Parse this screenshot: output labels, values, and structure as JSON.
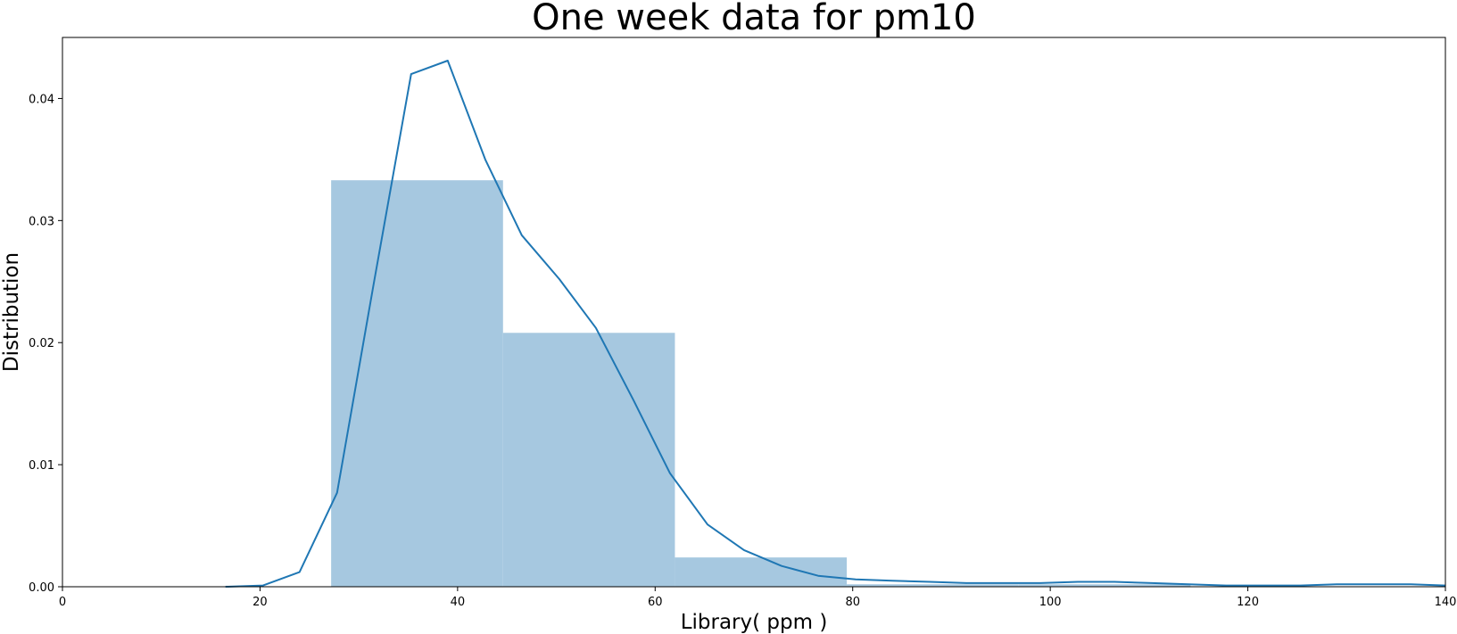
{
  "chart_data": {
    "type": "bar",
    "title": "One week data for pm10",
    "xlabel": "Library( ppm )",
    "ylabel": "Distribution",
    "xlim": [
      0,
      140
    ],
    "ylim": [
      0,
      0.045
    ],
    "xticks": [
      0,
      20,
      40,
      60,
      80,
      100,
      120,
      140
    ],
    "yticks": [
      0.0,
      0.01,
      0.02,
      0.03,
      0.04
    ],
    "xtick_labels": [
      "0",
      "20",
      "40",
      "60",
      "80",
      "100",
      "120",
      "140"
    ],
    "ytick_labels": [
      "0.00",
      "0.01",
      "0.02",
      "0.03",
      "0.04"
    ],
    "grid": false,
    "legend": "none",
    "colors": {
      "hist": "#a6c8e0",
      "kde": "#1f77b4"
    },
    "histogram": {
      "bin_edges": [
        27.2,
        44.6,
        62.0,
        79.4,
        96.8,
        114.2
      ],
      "values": [
        0.0333,
        0.0208,
        0.0024,
        0.0002,
        0.0002
      ]
    },
    "kde": {
      "x": [
        16.5,
        20.3,
        24.0,
        27.8,
        31.5,
        35.3,
        39.0,
        42.8,
        46.5,
        50.3,
        54.0,
        57.8,
        61.5,
        65.3,
        69.0,
        72.8,
        76.5,
        80.3,
        84.0,
        87.8,
        91.5,
        95.3,
        99.0,
        102.8,
        106.5,
        110.3,
        114.0,
        117.8,
        121.5,
        125.3,
        129.0,
        132.8,
        136.5,
        140.0
      ],
      "y": [
        0.0,
        0.0001,
        0.0012,
        0.0077,
        0.0248,
        0.042,
        0.0431,
        0.035,
        0.0288,
        0.0252,
        0.0212,
        0.0153,
        0.0093,
        0.0051,
        0.003,
        0.0017,
        0.0009,
        0.0006,
        0.0005,
        0.0004,
        0.0003,
        0.0003,
        0.0003,
        0.0004,
        0.0004,
        0.0003,
        0.0002,
        0.0001,
        0.0001,
        0.0001,
        0.0002,
        0.0002,
        0.0002,
        0.0001
      ]
    }
  }
}
